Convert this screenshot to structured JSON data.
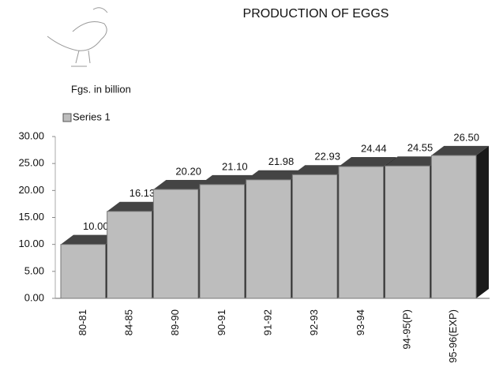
{
  "chart_data": {
    "type": "bar3d",
    "title": "PRODUCTION OF EGGS",
    "subtitle": "Fgs. in billion",
    "categories": [
      "80-81",
      "84-85",
      "89-90",
      "90-91",
      "91-92",
      "92-93",
      "93-94",
      "94-95(P)",
      "95-96(EXP)"
    ],
    "series": [
      {
        "name": "Series 1",
        "color": "#bdbdbd",
        "values": [
          10.0,
          16.13,
          20.2,
          21.1,
          21.98,
          22.93,
          24.44,
          24.55,
          26.5
        ],
        "value_labels": [
          "10.00",
          "16.13",
          "20.20",
          "21.10",
          "21.98",
          "22.93",
          "24.44",
          "24.55",
          "26.50"
        ]
      }
    ],
    "ylim": [
      0,
      30
    ],
    "yticks": [
      {
        "value": 0,
        "label": "0.00"
      },
      {
        "value": 5,
        "label": "5.00"
      },
      {
        "value": 10,
        "label": "10.00"
      },
      {
        "value": 15,
        "label": "15.00"
      },
      {
        "value": 20,
        "label": "20.00"
      },
      {
        "value": 25,
        "label": "25.00"
      },
      {
        "value": 30,
        "label": "30.00"
      }
    ],
    "grid": false
  }
}
